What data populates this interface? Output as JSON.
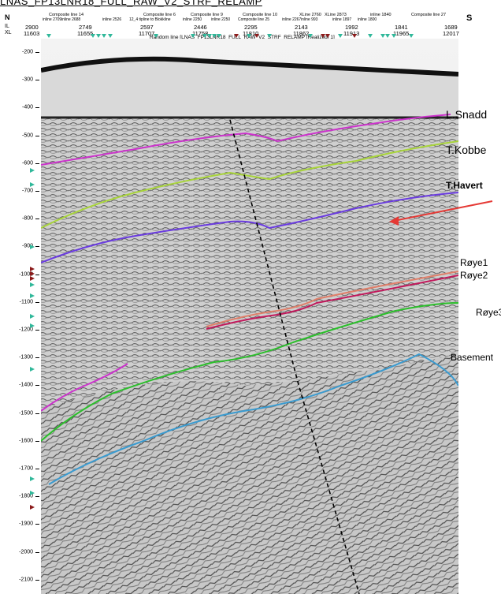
{
  "top_title": "LNAS_FP13LNR18_FULL_RAW_V2_STRF_RELAMP",
  "header": {
    "north": "N",
    "south": "S",
    "il_label": "IL",
    "xl_label": "XL",
    "il_values": [
      "2900",
      "2749",
      "2597",
      "2446",
      "2295",
      "2143",
      "1992",
      "1841",
      "1689"
    ],
    "xl_values": [
      "11603",
      "11655",
      "11707",
      "11758",
      "11810",
      "11862",
      "11913",
      "11965",
      "12017"
    ],
    "composite_labels": [
      "Composite line 14",
      "Composite line 6",
      "Composite line 9",
      "Composite line 10",
      "XLine 2760",
      "XLine 2873",
      "inline 1840",
      "Composite line 27"
    ],
    "sub_labels": [
      "inline 2709",
      "inline 2688",
      "inline 2526",
      "12_4 tipline to Blokkline",
      "inline 2250",
      "inline 2250",
      "Composite line 25",
      "inline 2267",
      "inline 993",
      "inline 1897",
      "inline 1800"
    ],
    "random_line": "Random line [LNAS_FP13LNR18_FULL_RAW_V2_STRF_RELAMP [Realized] 1]"
  },
  "y_axis": {
    "ticks": [
      "-200",
      "-300",
      "-400",
      "-500",
      "-600",
      "-700",
      "-800",
      "-900",
      "-1000",
      "-1100",
      "-1200",
      "-1300",
      "-1400",
      "-1500",
      "-1600",
      "-1700",
      "-1800",
      "-1900",
      "-2000",
      "-2100"
    ]
  },
  "horizons": [
    {
      "label": "L.Snadd",
      "color": "#cc33cc"
    },
    {
      "label": "T.Kobbe",
      "color": "#a8d43a"
    },
    {
      "label": "T.Havert",
      "color": "#6a3be0"
    },
    {
      "label": "Røye1",
      "color": "#e07f6a"
    },
    {
      "label": "Røye2",
      "color": "#c2185b"
    },
    {
      "label": "Røye3",
      "color": "#2bbf2b"
    },
    {
      "label": "Basement",
      "color": "#3a9bd0"
    }
  ],
  "colors": {
    "arrow": "#e53935",
    "fault": "#000000",
    "marker_teal": "#30b89a",
    "marker_red": "#8b1a1a"
  }
}
